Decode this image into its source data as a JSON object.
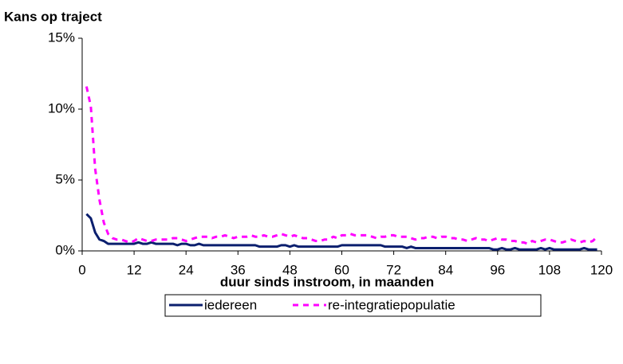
{
  "chart_data": {
    "type": "line",
    "title": "Kans op traject",
    "x_label": "duur sinds instroom, in maanden",
    "x": [
      1,
      2,
      3,
      4,
      5,
      6,
      7,
      8,
      9,
      10,
      11,
      12,
      13,
      14,
      15,
      16,
      17,
      18,
      19,
      20,
      21,
      22,
      23,
      24,
      25,
      26,
      27,
      28,
      29,
      30,
      31,
      32,
      33,
      34,
      35,
      36,
      37,
      38,
      39,
      40,
      41,
      42,
      43,
      44,
      45,
      46,
      47,
      48,
      49,
      50,
      51,
      52,
      53,
      54,
      55,
      56,
      57,
      58,
      59,
      60,
      61,
      62,
      63,
      64,
      65,
      66,
      67,
      68,
      69,
      70,
      71,
      72,
      73,
      74,
      75,
      76,
      77,
      78,
      79,
      80,
      81,
      82,
      83,
      84,
      85,
      86,
      87,
      88,
      89,
      90,
      91,
      92,
      93,
      94,
      95,
      96,
      97,
      98,
      99,
      100,
      101,
      102,
      103,
      104,
      105,
      106,
      107,
      108,
      109,
      110,
      111,
      112,
      113,
      114,
      115,
      116,
      117,
      118,
      119
    ],
    "series": [
      {
        "name": "iedereen",
        "color": "#0b1f6e",
        "dashed": false,
        "values": [
          2.6,
          2.3,
          1.3,
          0.8,
          0.7,
          0.5,
          0.5,
          0.5,
          0.5,
          0.5,
          0.5,
          0.5,
          0.6,
          0.5,
          0.5,
          0.6,
          0.5,
          0.5,
          0.5,
          0.5,
          0.5,
          0.4,
          0.5,
          0.5,
          0.4,
          0.4,
          0.5,
          0.4,
          0.4,
          0.4,
          0.4,
          0.4,
          0.4,
          0.4,
          0.4,
          0.4,
          0.4,
          0.4,
          0.4,
          0.4,
          0.3,
          0.3,
          0.3,
          0.3,
          0.3,
          0.4,
          0.4,
          0.3,
          0.4,
          0.3,
          0.3,
          0.3,
          0.3,
          0.3,
          0.3,
          0.3,
          0.3,
          0.3,
          0.3,
          0.4,
          0.4,
          0.4,
          0.4,
          0.4,
          0.4,
          0.4,
          0.4,
          0.4,
          0.4,
          0.3,
          0.3,
          0.3,
          0.3,
          0.3,
          0.2,
          0.3,
          0.2,
          0.2,
          0.2,
          0.2,
          0.2,
          0.2,
          0.2,
          0.2,
          0.2,
          0.2,
          0.2,
          0.2,
          0.2,
          0.2,
          0.2,
          0.2,
          0.2,
          0.2,
          0.1,
          0.1,
          0.2,
          0.1,
          0.1,
          0.2,
          0.1,
          0.1,
          0.1,
          0.1,
          0.1,
          0.2,
          0.1,
          0.2,
          0.1,
          0.1,
          0.1,
          0.1,
          0.1,
          0.1,
          0.1,
          0.2,
          0.1,
          0.1,
          0.1
        ]
      },
      {
        "name": "re-integratiepopulatie",
        "color": "#ff00ff",
        "dashed": true,
        "values": [
          11.6,
          10.2,
          5.8,
          3.6,
          2.0,
          1.2,
          0.9,
          0.8,
          0.8,
          0.7,
          0.6,
          0.7,
          0.9,
          0.8,
          0.7,
          0.7,
          0.8,
          0.8,
          0.8,
          0.8,
          0.9,
          0.9,
          0.8,
          0.7,
          0.8,
          0.9,
          1.0,
          1.0,
          1.0,
          0.9,
          1.0,
          1.0,
          1.1,
          1.0,
          0.9,
          1.0,
          1.0,
          1.0,
          1.1,
          1.0,
          1.0,
          1.1,
          1.0,
          1.0,
          1.1,
          1.2,
          1.1,
          1.0,
          1.1,
          1.0,
          0.9,
          0.9,
          0.8,
          0.7,
          0.7,
          0.8,
          0.8,
          1.0,
          0.9,
          1.1,
          1.1,
          1.2,
          1.1,
          1.1,
          1.1,
          1.1,
          1.0,
          0.9,
          1.0,
          1.0,
          1.1,
          1.1,
          1.0,
          1.0,
          1.0,
          0.9,
          0.8,
          0.9,
          0.9,
          1.0,
          1.0,
          0.9,
          1.0,
          1.0,
          0.9,
          0.9,
          0.8,
          0.8,
          0.7,
          0.8,
          0.9,
          0.8,
          0.8,
          0.7,
          0.8,
          0.9,
          0.8,
          0.8,
          0.7,
          0.7,
          0.6,
          0.6,
          0.5,
          0.7,
          0.6,
          0.7,
          0.8,
          0.8,
          0.7,
          0.6,
          0.6,
          0.7,
          0.8,
          0.7,
          0.6,
          0.7,
          0.6,
          0.7,
          1.0
        ]
      }
    ],
    "xlim": [
      0,
      120
    ],
    "xticks": [
      0,
      12,
      24,
      36,
      48,
      60,
      72,
      84,
      96,
      108,
      120
    ],
    "ylim": [
      0,
      15
    ],
    "yticks": [
      {
        "value": 0,
        "label": "0%"
      },
      {
        "value": 5,
        "label": "5%"
      },
      {
        "value": 10,
        "label": "10%"
      },
      {
        "value": 15,
        "label": "15%"
      }
    ],
    "grid": false,
    "legend": "bottom"
  }
}
